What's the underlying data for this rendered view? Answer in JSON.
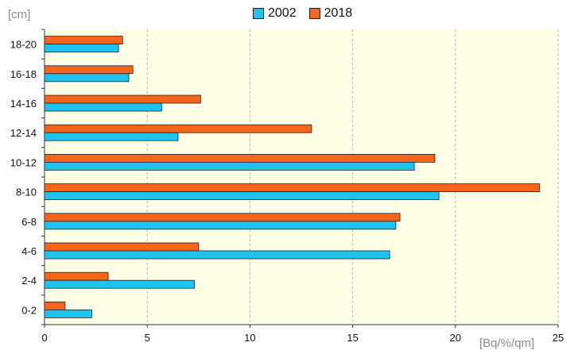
{
  "chart_data": {
    "type": "bar",
    "orientation": "horizontal",
    "categories": [
      "0-2",
      "2-4",
      "4-6",
      "6-8",
      "8-10",
      "10-12",
      "12-14",
      "14-16",
      "16-18",
      "18-20"
    ],
    "series": [
      {
        "name": "2002",
        "color": "#1ec3ef",
        "values": [
          2.3,
          7.3,
          16.8,
          17.1,
          19.2,
          18.0,
          6.5,
          5.7,
          4.1,
          3.6
        ]
      },
      {
        "name": "2018",
        "color": "#f5661a",
        "values": [
          1.0,
          3.1,
          7.5,
          17.3,
          24.1,
          19.0,
          13.0,
          7.6,
          4.3,
          3.8
        ]
      }
    ],
    "xlim": [
      0,
      25
    ],
    "xticks": [
      "0",
      "5",
      "10",
      "15",
      "20",
      "25"
    ],
    "xlabel": "[Bq/%/qm]",
    "ylabel": "[cm]",
    "legend_position": "top-center",
    "grid": "vertical dashed",
    "plot_background": "#ffffe6"
  }
}
